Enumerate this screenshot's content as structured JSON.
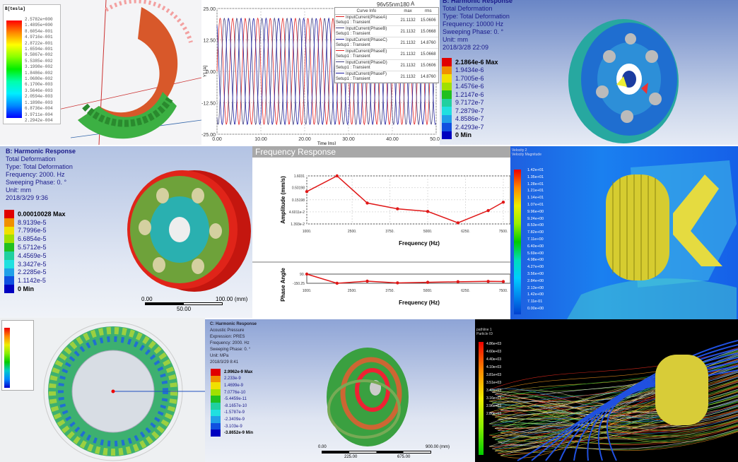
{
  "panel_a": {
    "legend_title": "B[tesla]",
    "legend_values": [
      "2.5782e+000",
      "1.4895e+000",
      "8.6054e-001",
      "4.9716e-001",
      "2.8722e-001",
      "1.6594e-001",
      "9.5867e-002",
      "5.5385e-002",
      "3.1998e-002",
      "1.8486e-002",
      "1.0680e-002",
      "6.1700e-003",
      "3.5646e-003",
      "2.0594e-003",
      "1.1898e-003",
      "6.8736e-004",
      "3.9711e-004",
      "2.2942e-004"
    ]
  },
  "panel_b": {
    "title": "A",
    "project": "96v55nm180",
    "ylabel": "Y1 [A]",
    "xlabel": "Time [ms]",
    "table_headers": [
      "Curve Info",
      "max",
      "rms"
    ],
    "curves": [
      {
        "name": "InputCurrent(PhaseA)",
        "setup": "Setup1 : Transient",
        "max": "21.1132",
        "rms": "15.0606",
        "color": "#e02020"
      },
      {
        "name": "InputCurrent(PhaseB)",
        "setup": "Setup1 : Transient",
        "max": "21.1132",
        "rms": "15.0668",
        "color": "#404080"
      },
      {
        "name": "InputCurrent(PhaseC)",
        "setup": "Setup1 : Transient",
        "max": "21.1132",
        "rms": "14.8760",
        "color": "#1a1aa0"
      },
      {
        "name": "InputCurrent(PhaseE)",
        "setup": "Setup1 : Transient",
        "max": "21.1132",
        "rms": "15.0668",
        "color": "#e02020"
      },
      {
        "name": "InputCurrent(PhaseD)",
        "setup": "Setup1 : Transient",
        "max": "21.1132",
        "rms": "15.0606",
        "color": "#404080"
      },
      {
        "name": "InputCurrent(PhaseF)",
        "setup": "Setup1 : Transient",
        "max": "21.1132",
        "rms": "14.8760",
        "color": "#1a1aa0"
      }
    ]
  },
  "panel_c": {
    "info": [
      "B: Harmonic Response",
      "Total Deformation",
      "Type: Total Deformation",
      "Frequency: 10000 Hz",
      "Sweeping Phase: 0. °",
      "Unit: mm",
      "2018/3/28 22:09"
    ],
    "legend": [
      "2.1864e-6 Max",
      "1.9434e-6",
      "1.7005e-6",
      "1.4576e-6",
      "1.2147e-6",
      "9.7172e-7",
      "7.2879e-7",
      "4.8586e-7",
      "2.4293e-7",
      "0 Min"
    ]
  },
  "panel_d": {
    "info": [
      "B: Harmonic Response",
      "Total Deformation",
      "Type: Total Deformation",
      "Frequency: 2000. Hz",
      "Sweeping Phase: 0. °",
      "Unit: mm",
      "2018/3/29 9:36"
    ],
    "legend": [
      "0.00010028 Max",
      "8.9139e-5",
      "7.7996e-5",
      "6.6854e-5",
      "5.5712e-5",
      "4.4569e-5",
      "3.3427e-5",
      "2.2285e-5",
      "1.1142e-5",
      "0 Min"
    ],
    "scale": [
      "0.00",
      "100.00 (mm)",
      "50.00"
    ]
  },
  "panel_f": {
    "info": [
      "Velocity 2",
      "Velocity Magnitude"
    ],
    "legend": [
      "1.42e+01",
      "1.35e+01",
      "1.28e+01",
      "1.21e+01",
      "1.14e+01",
      "1.07e+01",
      "9.96e+00",
      "9.24e+00",
      "8.53e+00",
      "7.82e+00",
      "7.11e+00",
      "6.40e+00",
      "5.69e+00",
      "4.98e+00",
      "4.27e+00",
      "3.56e+00",
      "2.84e+00",
      "2.13e+00",
      "1.42e+00",
      "7.11e-01",
      "0.00e+00"
    ]
  },
  "panel_h": {
    "info": [
      "C: Harmonic Response",
      "Acoustic Pressure",
      "Expression: PRES",
      "Frequency: 2000. Hz",
      "Sweeping Phase: 0. °",
      "Unit: MPa",
      "2018/3/29 8:41"
    ],
    "legend": [
      "2.9962e-9 Max",
      "2.233e-9",
      "1.4699e-9",
      "7.0776e-10",
      "-5.4459e-11",
      "-8.1657e-10",
      "-1.5787e-9",
      "-2.3409e-9",
      "-3.103e-9",
      "-3.8652e-9 Min"
    ],
    "scale": [
      "0.00",
      "900.00 (mm)",
      "225.00",
      "675.00"
    ]
  },
  "panel_i": {
    "info": [
      "pathline 1",
      "Particle ID"
    ],
    "legend": [
      "4.86e+03",
      "4.60e+03",
      "4.40e+03",
      "4.10e+03",
      "3.81e+03",
      "3.51e+03",
      "3.42e+03",
      "3.16e+03",
      "2.96e+03",
      "2.80e+03"
    ]
  },
  "chart_data": [
    {
      "type": "line",
      "title": "A",
      "xlabel": "Time [ms]",
      "ylabel": "Y1 [A]",
      "xlim": [
        0,
        50
      ],
      "ylim": [
        -25,
        25
      ],
      "xticks": [
        "0.00",
        "10.00",
        "20.00",
        "30.00",
        "40.00",
        "50.00"
      ],
      "yticks": [
        "25.00",
        "12.50",
        "0.00",
        "-12.50",
        "-25.00"
      ],
      "waveform": "sine",
      "amplitude": 21.1132,
      "period_ms": 2.86,
      "series": [
        {
          "name": "InputCurrent(PhaseA)",
          "phase_deg": 0,
          "color": "#e02020"
        },
        {
          "name": "InputCurrent(PhaseB)",
          "phase_deg": -120,
          "color": "#404080"
        },
        {
          "name": "InputCurrent(PhaseC)",
          "phase_deg": 120,
          "color": "#1a1aa0"
        }
      ]
    },
    {
      "type": "line",
      "title": "Frequency Response",
      "xlabel": "Frequency (Hz)",
      "ylabel": "Amplitude (mm/s)",
      "yscale": "log",
      "xlim": [
        1000,
        7500
      ],
      "ylim": [
        0.01393,
        1.6031
      ],
      "xticks": [
        "1000.",
        "2500.",
        "3750.",
        "5000.",
        "6250.",
        "7500."
      ],
      "yticks": [
        "1.6031",
        "0.50198",
        "0.15198",
        "4.6011e-2",
        "1.393e-2"
      ],
      "grid": true,
      "x": [
        1000,
        2000,
        3000,
        4000,
        5000,
        6000,
        7000,
        7500
      ],
      "y": [
        0.34,
        1.6031,
        0.11,
        0.062,
        0.048,
        0.0155,
        0.052,
        0.12
      ],
      "color": "#e01818"
    },
    {
      "type": "line",
      "xlabel": "Frequency (Hz)",
      "ylabel": "Phase Angle",
      "xlim": [
        1000,
        7500
      ],
      "ylim": [
        -150.25,
        90
      ],
      "xticks": [
        "1000.",
        "2500.",
        "3750.",
        "5000.",
        "6250.",
        "7500."
      ],
      "yticks": [
        "90.",
        "-150.25"
      ],
      "x": [
        1000,
        2000,
        3000,
        4000,
        5000,
        6000,
        7000,
        7500
      ],
      "y": [
        90,
        -150,
        -95,
        -140,
        -125,
        -110,
        -100,
        -105
      ],
      "color": "#e01818"
    }
  ]
}
